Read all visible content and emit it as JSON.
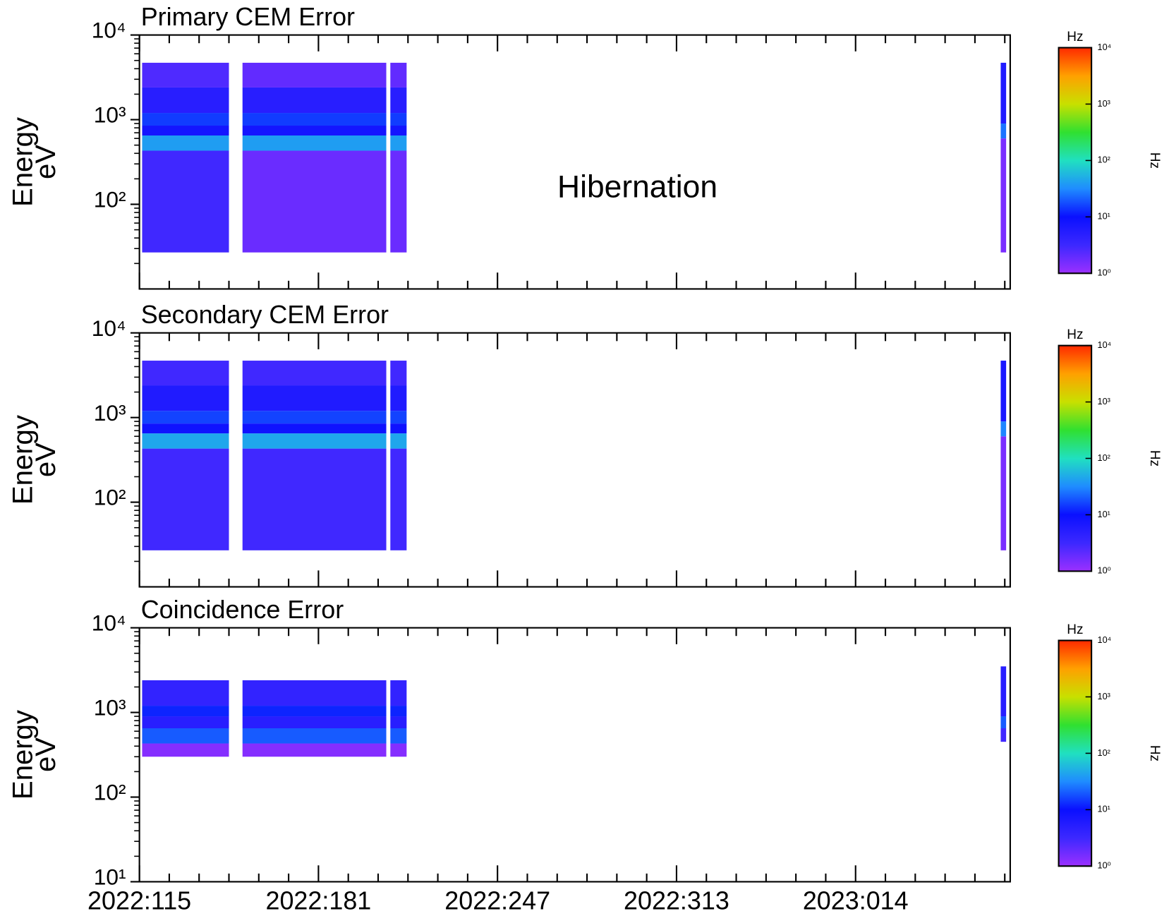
{
  "chart_data": [
    {
      "type": "spectrogram",
      "title": "Primary CEM Error",
      "ylabel": "Energy",
      "ylabel_unit": "eV",
      "annotation": "Hibernation",
      "xlim": [
        115,
        436
      ],
      "xticks": [
        115,
        181,
        247,
        313,
        379
      ],
      "ylim": [
        10,
        10000
      ],
      "log_y": true,
      "yticks": [
        {
          "value": 100,
          "label": "10²"
        },
        {
          "value": 1000,
          "label": "10³"
        },
        {
          "value": 10000,
          "label": "10⁴"
        }
      ],
      "intervals": [
        {
          "start": 116,
          "end": 148,
          "bands": [
            {
              "low": 27,
              "high": 430,
              "value": 3
            },
            {
              "low": 430,
              "high": 650,
              "value": 40
            },
            {
              "low": 650,
              "high": 850,
              "value": 8
            },
            {
              "low": 850,
              "high": 1200,
              "value": 15
            },
            {
              "low": 1200,
              "high": 2400,
              "value": 5
            },
            {
              "low": 2400,
              "high": 4700,
              "value": 2.5
            }
          ]
        },
        {
          "start": 153,
          "end": 206,
          "bands": [
            {
              "low": 27,
              "high": 430,
              "value": 1.8
            },
            {
              "low": 430,
              "high": 650,
              "value": 40
            },
            {
              "low": 650,
              "high": 850,
              "value": 8
            },
            {
              "low": 850,
              "high": 1200,
              "value": 15
            },
            {
              "low": 1200,
              "high": 2400,
              "value": 5
            },
            {
              "low": 2400,
              "high": 4700,
              "value": 2
            }
          ]
        },
        {
          "start": 207.5,
          "end": 213.5,
          "bands": [
            {
              "low": 27,
              "high": 430,
              "value": 1.8
            },
            {
              "low": 430,
              "high": 650,
              "value": 40
            },
            {
              "low": 650,
              "high": 850,
              "value": 8
            },
            {
              "low": 850,
              "high": 1200,
              "value": 15
            },
            {
              "low": 1200,
              "high": 2400,
              "value": 5
            },
            {
              "low": 2400,
              "high": 4700,
              "value": 2
            }
          ]
        },
        {
          "start": 432.5,
          "end": 434.5,
          "bands": [
            {
              "low": 27,
              "high": 600,
              "value": 1.5
            },
            {
              "low": 600,
              "high": 900,
              "value": 25
            },
            {
              "low": 900,
              "high": 4700,
              "value": 6
            }
          ]
        }
      ],
      "colorbar": {
        "label": "Hz",
        "lim": [
          1,
          10000
        ],
        "ticks": [
          {
            "value": 1,
            "label": "10⁰"
          },
          {
            "value": 10,
            "label": "10¹"
          },
          {
            "value": 100,
            "label": "10²"
          },
          {
            "value": 1000,
            "label": "10³"
          },
          {
            "value": 10000,
            "label": "10⁴"
          }
        ],
        "colors": [
          "#9b30ff",
          "#3c28ff",
          "#0a10ff",
          "#1f8cff",
          "#20e0c0",
          "#30e030",
          "#c8e000",
          "#ffa000",
          "#ff2a00"
        ]
      }
    },
    {
      "type": "spectrogram",
      "title": "Secondary CEM Error",
      "ylabel": "Energy",
      "ylabel_unit": "eV",
      "xlim": [
        115,
        436
      ],
      "xticks": [
        115,
        181,
        247,
        313,
        379
      ],
      "ylim": [
        10,
        10000
      ],
      "log_y": true,
      "yticks": [
        {
          "value": 100,
          "label": "10²"
        },
        {
          "value": 1000,
          "label": "10³"
        },
        {
          "value": 10000,
          "label": "10⁴"
        }
      ],
      "intervals": [
        {
          "start": 116,
          "end": 148,
          "bands": [
            {
              "low": 27,
              "high": 430,
              "value": 3
            },
            {
              "low": 430,
              "high": 650,
              "value": 45
            },
            {
              "low": 650,
              "high": 850,
              "value": 9
            },
            {
              "low": 850,
              "high": 1200,
              "value": 16
            },
            {
              "low": 1200,
              "high": 2400,
              "value": 6
            },
            {
              "low": 2400,
              "high": 4700,
              "value": 3
            }
          ]
        },
        {
          "start": 153,
          "end": 206,
          "bands": [
            {
              "low": 27,
              "high": 430,
              "value": 3
            },
            {
              "low": 430,
              "high": 650,
              "value": 45
            },
            {
              "low": 650,
              "high": 850,
              "value": 9
            },
            {
              "low": 850,
              "high": 1200,
              "value": 16
            },
            {
              "low": 1200,
              "high": 2400,
              "value": 6
            },
            {
              "low": 2400,
              "high": 4700,
              "value": 3
            }
          ]
        },
        {
          "start": 207.5,
          "end": 213.5,
          "bands": [
            {
              "low": 27,
              "high": 430,
              "value": 3
            },
            {
              "low": 430,
              "high": 650,
              "value": 45
            },
            {
              "low": 650,
              "high": 850,
              "value": 9
            },
            {
              "low": 850,
              "high": 1200,
              "value": 16
            },
            {
              "low": 1200,
              "high": 2400,
              "value": 6
            },
            {
              "low": 2400,
              "high": 4700,
              "value": 3
            }
          ]
        },
        {
          "start": 432.5,
          "end": 434.5,
          "bands": [
            {
              "low": 27,
              "high": 600,
              "value": 1.5
            },
            {
              "low": 600,
              "high": 900,
              "value": 30
            },
            {
              "low": 900,
              "high": 4700,
              "value": 7
            }
          ]
        }
      ],
      "colorbar": {
        "label": "Hz",
        "lim": [
          1,
          10000
        ],
        "ticks": [
          {
            "value": 1,
            "label": "10⁰"
          },
          {
            "value": 10,
            "label": "10¹"
          },
          {
            "value": 100,
            "label": "10²"
          },
          {
            "value": 1000,
            "label": "10³"
          },
          {
            "value": 10000,
            "label": "10⁴"
          }
        ],
        "colors": [
          "#9b30ff",
          "#3c28ff",
          "#0a10ff",
          "#1f8cff",
          "#20e0c0",
          "#30e030",
          "#c8e000",
          "#ffa000",
          "#ff2a00"
        ]
      }
    },
    {
      "type": "spectrogram",
      "title": "Coincidence Error",
      "ylabel": "Energy",
      "ylabel_unit": "eV",
      "xlim": [
        115,
        436
      ],
      "xticks": [
        {
          "value": 115,
          "label": "2022:115"
        },
        {
          "value": 181,
          "label": "2022:181"
        },
        {
          "value": 247,
          "label": "2022:247"
        },
        {
          "value": 313,
          "label": "2022:313"
        },
        {
          "value": 379,
          "label": "2023:014"
        }
      ],
      "ylim": [
        10,
        10000
      ],
      "log_y": true,
      "yticks": [
        {
          "value": 10,
          "label": "10¹"
        },
        {
          "value": 100,
          "label": "10²"
        },
        {
          "value": 1000,
          "label": "10³"
        },
        {
          "value": 10000,
          "label": "10⁴"
        }
      ],
      "intervals": [
        {
          "start": 116,
          "end": 148,
          "bands": [
            {
              "low": 300,
              "high": 430,
              "value": 1.3
            },
            {
              "low": 430,
              "high": 650,
              "value": 20
            },
            {
              "low": 650,
              "high": 900,
              "value": 5
            },
            {
              "low": 900,
              "high": 1200,
              "value": 12
            },
            {
              "low": 1200,
              "high": 2400,
              "value": 4
            }
          ]
        },
        {
          "start": 153,
          "end": 206,
          "bands": [
            {
              "low": 300,
              "high": 430,
              "value": 1.3
            },
            {
              "low": 430,
              "high": 650,
              "value": 20
            },
            {
              "low": 650,
              "high": 900,
              "value": 5
            },
            {
              "low": 900,
              "high": 1200,
              "value": 12
            },
            {
              "low": 1200,
              "high": 2400,
              "value": 4
            }
          ]
        },
        {
          "start": 207.5,
          "end": 213.5,
          "bands": [
            {
              "low": 300,
              "high": 430,
              "value": 1.3
            },
            {
              "low": 430,
              "high": 650,
              "value": 20
            },
            {
              "low": 650,
              "high": 900,
              "value": 5
            },
            {
              "low": 900,
              "high": 1200,
              "value": 12
            },
            {
              "low": 1200,
              "high": 2400,
              "value": 4
            }
          ]
        },
        {
          "start": 432.5,
          "end": 434.5,
          "bands": [
            {
              "low": 450,
              "high": 650,
              "value": 3
            },
            {
              "low": 650,
              "high": 900,
              "value": 20
            },
            {
              "low": 900,
              "high": 3500,
              "value": 5
            }
          ]
        }
      ],
      "colorbar": {
        "label": "Hz",
        "lim": [
          1,
          10000
        ],
        "ticks": [
          {
            "value": 1,
            "label": "10⁰"
          },
          {
            "value": 10,
            "label": "10¹"
          },
          {
            "value": 100,
            "label": "10²"
          },
          {
            "value": 1000,
            "label": "10³"
          },
          {
            "value": 10000,
            "label": "10⁴"
          }
        ],
        "colors": [
          "#9b30ff",
          "#3c28ff",
          "#0a10ff",
          "#1f8cff",
          "#20e0c0",
          "#30e030",
          "#c8e000",
          "#ffa000",
          "#ff2a00"
        ]
      }
    }
  ]
}
